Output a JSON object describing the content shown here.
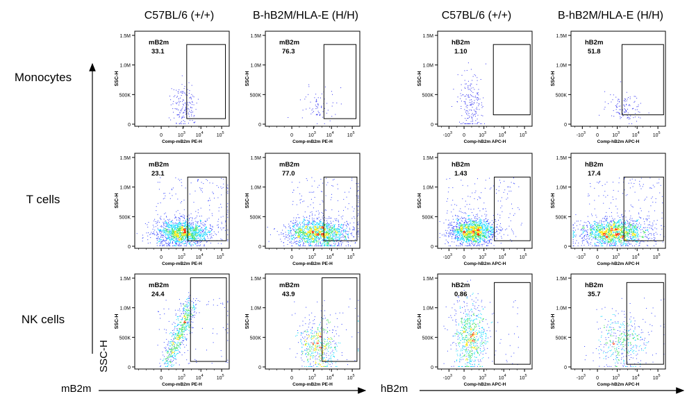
{
  "column_headers": [
    "C57BL/6 (+/+)",
    "B-hB2M/HLA-E (H/H)",
    "C57BL/6 (+/+)",
    "B-hB2M/HLA-E (H/H)"
  ],
  "row_labels": [
    "Monocytes",
    "T cells",
    "NK cells"
  ],
  "y_axis_arrow_label": "SSC-H",
  "x_axis_arrow_labels": [
    "mB2m",
    "hB2m"
  ],
  "colors": {
    "sparse_dots": "#2e2ef0",
    "density_low": "#2a3bff",
    "density_mid": "#00d6ff",
    "density_mid2": "#39e05a",
    "density_high": "#ffe600",
    "density_peak": "#ff2a00"
  },
  "chart_data": [
    {
      "type": "scatter",
      "row": "Monocytes",
      "column": "C57BL/6 (+/+)",
      "marker": "mB2m",
      "gate_label": "mB2m",
      "percentage": "33.1",
      "xlabel": "Comp-mB2m PE-H",
      "ylabel": "SSC-H",
      "x_ticks": [
        "0",
        "10",
        "10",
        "10"
      ],
      "x_tick_exponents": [
        "",
        "3",
        "4",
        "5"
      ],
      "y_ticks": [
        "0",
        "500K",
        "1.0M",
        "1.5M"
      ],
      "x_scale": "biexponential",
      "ylim": [
        0,
        1500000
      ],
      "events": "sparse"
    },
    {
      "type": "scatter",
      "row": "Monocytes",
      "column": "B-hB2M/HLA-E (H/H)",
      "marker": "mB2m",
      "gate_label": "mB2m",
      "percentage": "76.3",
      "xlabel": "Comp-mB2m PE-H",
      "ylabel": "SSC-H",
      "x_ticks": [
        "0",
        "10",
        "10",
        "10"
      ],
      "x_tick_exponents": [
        "",
        "3",
        "4",
        "5"
      ],
      "y_ticks": [
        "0",
        "500K",
        "1.0M",
        "1.5M"
      ],
      "x_scale": "biexponential",
      "ylim": [
        0,
        1500000
      ],
      "events": "sparse"
    },
    {
      "type": "scatter",
      "row": "Monocytes",
      "column": "C57BL/6 (+/+)",
      "marker": "hB2m",
      "gate_label": "hB2m",
      "percentage": "1.10",
      "xlabel": "Comp-hB2m APC-H",
      "ylabel": "SSC-H",
      "x_ticks": [
        "-10",
        "0",
        "10",
        "10",
        "10"
      ],
      "x_tick_exponents": [
        "3",
        "",
        "3",
        "4",
        "5"
      ],
      "y_ticks": [
        "0",
        "500K",
        "1.0M",
        "1.5M"
      ],
      "x_scale": "biexponential",
      "ylim": [
        0,
        1500000
      ],
      "events": "sparse"
    },
    {
      "type": "scatter",
      "row": "Monocytes",
      "column": "B-hB2M/HLA-E (H/H)",
      "marker": "hB2m",
      "gate_label": "hB2m",
      "percentage": "51.8",
      "xlabel": "Comp-hB2m APC-H",
      "ylabel": "SSC-H",
      "x_ticks": [
        "-10",
        "0",
        "10",
        "10",
        "10"
      ],
      "x_tick_exponents": [
        "3",
        "",
        "3",
        "4",
        "5"
      ],
      "y_ticks": [
        "0",
        "500K",
        "1.0M",
        "1.5M"
      ],
      "x_scale": "biexponential",
      "ylim": [
        0,
        1500000
      ],
      "events": "sparse"
    },
    {
      "type": "scatter",
      "row": "T cells",
      "column": "C57BL/6 (+/+)",
      "marker": "mB2m",
      "gate_label": "mB2m",
      "percentage": "23.1",
      "xlabel": "Comp-mB2m PE-H",
      "ylabel": "SSC-H",
      "x_ticks": [
        "0",
        "10",
        "10",
        "10"
      ],
      "x_tick_exponents": [
        "",
        "3",
        "4",
        "5"
      ],
      "y_ticks": [
        "0",
        "500K",
        "1.0M",
        "1.5M"
      ],
      "x_scale": "biexponential",
      "ylim": [
        0,
        1500000
      ],
      "events": "dense"
    },
    {
      "type": "scatter",
      "row": "T cells",
      "column": "B-hB2M/HLA-E (H/H)",
      "marker": "mB2m",
      "gate_label": "mB2m",
      "percentage": "77.0",
      "xlabel": "Comp-mB2m PE-H",
      "ylabel": "SSC-H",
      "x_ticks": [
        "0",
        "10",
        "10",
        "10"
      ],
      "x_tick_exponents": [
        "",
        "3",
        "4",
        "5"
      ],
      "y_ticks": [
        "0",
        "500K",
        "1.0M",
        "1.5M"
      ],
      "x_scale": "biexponential",
      "ylim": [
        0,
        1500000
      ],
      "events": "dense"
    },
    {
      "type": "scatter",
      "row": "T cells",
      "column": "C57BL/6 (+/+)",
      "marker": "hB2m",
      "gate_label": "hB2m",
      "percentage": "1.43",
      "xlabel": "Comp-hB2m APC-H",
      "ylabel": "SSC-H",
      "x_ticks": [
        "-10",
        "0",
        "10",
        "10",
        "10"
      ],
      "x_tick_exponents": [
        "3",
        "",
        "3",
        "4",
        "5"
      ],
      "y_ticks": [
        "0",
        "500K",
        "1.0M",
        "1.5M"
      ],
      "x_scale": "biexponential",
      "ylim": [
        0,
        1500000
      ],
      "events": "dense"
    },
    {
      "type": "scatter",
      "row": "T cells",
      "column": "B-hB2M/HLA-E (H/H)",
      "marker": "hB2m",
      "gate_label": "hB2m",
      "percentage": "17.4",
      "xlabel": "Comp-hB2m APC-H",
      "ylabel": "SSC-H",
      "x_ticks": [
        "-10",
        "0",
        "10",
        "10",
        "10"
      ],
      "x_tick_exponents": [
        "3",
        "",
        "3",
        "4",
        "5"
      ],
      "y_ticks": [
        "0",
        "500K",
        "1.0M",
        "1.5M"
      ],
      "x_scale": "biexponential",
      "ylim": [
        0,
        1500000
      ],
      "events": "dense"
    },
    {
      "type": "scatter",
      "row": "NK cells",
      "column": "C57BL/6 (+/+)",
      "marker": "mB2m",
      "gate_label": "mB2m",
      "percentage": "24.4",
      "xlabel": "Comp-mB2m PE-H",
      "ylabel": "SSC-H",
      "x_ticks": [
        "0",
        "10",
        "10",
        "10"
      ],
      "x_tick_exponents": [
        "",
        "3",
        "4",
        "5"
      ],
      "y_ticks": [
        "0",
        "500K",
        "1.0M",
        "1.5M"
      ],
      "x_scale": "biexponential",
      "ylim": [
        0,
        1500000
      ],
      "events": "medium"
    },
    {
      "type": "scatter",
      "row": "NK cells",
      "column": "B-hB2M/HLA-E (H/H)",
      "marker": "mB2m",
      "gate_label": "mB2m",
      "percentage": "43.9",
      "xlabel": "Comp-mB2m PE-H",
      "ylabel": "SSC-H",
      "x_ticks": [
        "0",
        "10",
        "10",
        "10"
      ],
      "x_tick_exponents": [
        "",
        "3",
        "4",
        "5"
      ],
      "y_ticks": [
        "0",
        "500K",
        "1.0M",
        "1.5M"
      ],
      "x_scale": "biexponential",
      "ylim": [
        0,
        1500000
      ],
      "events": "medium"
    },
    {
      "type": "scatter",
      "row": "NK cells",
      "column": "C57BL/6 (+/+)",
      "marker": "hB2m",
      "gate_label": "hB2m",
      "percentage": "0.86",
      "xlabel": "Comp-hB2m APC-H",
      "ylabel": "SSC-H",
      "x_ticks": [
        "-10",
        "0",
        "10",
        "10",
        "10"
      ],
      "x_tick_exponents": [
        "3",
        "",
        "3",
        "4",
        "5"
      ],
      "y_ticks": [
        "0",
        "500K",
        "1.0M",
        "1.5M"
      ],
      "x_scale": "biexponential",
      "ylim": [
        0,
        1500000
      ],
      "events": "medium"
    },
    {
      "type": "scatter",
      "row": "NK cells",
      "column": "B-hB2M/HLA-E (H/H)",
      "marker": "hB2m",
      "gate_label": "hB2m",
      "percentage": "35.7",
      "xlabel": "Comp-hB2m APC-H",
      "ylabel": "SSC-H",
      "x_ticks": [
        "-10",
        "0",
        "10",
        "10",
        "10"
      ],
      "x_tick_exponents": [
        "3",
        "",
        "3",
        "4",
        "5"
      ],
      "y_ticks": [
        "0",
        "500K",
        "1.0M",
        "1.5M"
      ],
      "x_scale": "biexponential",
      "ylim": [
        0,
        1500000
      ],
      "events": "medium"
    }
  ]
}
